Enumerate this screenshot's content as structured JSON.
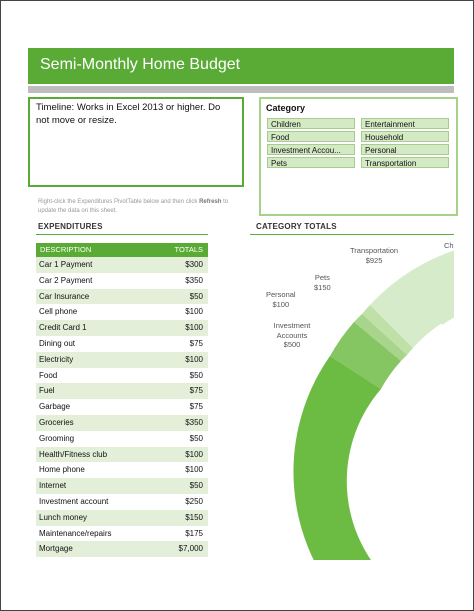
{
  "title": "Semi-Monthly Home Budget",
  "timeline_text": "Timeline: Works in Excel 2013 or higher. Do not move or resize.",
  "slicer": {
    "header": "Category",
    "items": [
      "Children",
      "Entertainment",
      "Food",
      "Household",
      "Investment Accou...",
      "Personal",
      "Pets",
      "Transportation"
    ]
  },
  "note": {
    "pre": "Right-click the Expenditures PivotTable below and then click ",
    "bold": "Refresh",
    "post": " to update the data on this sheet."
  },
  "expenditures": {
    "title": "EXPENDITURES",
    "col_desc": "DESCRIPTION",
    "col_total": "TOTALS",
    "rows": [
      {
        "desc": "Car 1 Payment",
        "total": "$300"
      },
      {
        "desc": "Car 2 Payment",
        "total": "$350"
      },
      {
        "desc": "Car Insurance",
        "total": "$50"
      },
      {
        "desc": "Cell phone",
        "total": "$100"
      },
      {
        "desc": "Credit Card 1",
        "total": "$100"
      },
      {
        "desc": "Dining out",
        "total": "$75"
      },
      {
        "desc": "Electricity",
        "total": "$100"
      },
      {
        "desc": "Food",
        "total": "$50"
      },
      {
        "desc": "Fuel",
        "total": "$75"
      },
      {
        "desc": "Garbage",
        "total": "$75"
      },
      {
        "desc": "Groceries",
        "total": "$350"
      },
      {
        "desc": "Grooming",
        "total": "$50"
      },
      {
        "desc": "Health/Fitness club",
        "total": "$100"
      },
      {
        "desc": "Home phone",
        "total": "$100"
      },
      {
        "desc": "Internet",
        "total": "$50"
      },
      {
        "desc": "Investment account",
        "total": "$250"
      },
      {
        "desc": "Lunch money",
        "total": "$150"
      },
      {
        "desc": "Maintenance/repairs",
        "total": "$175"
      },
      {
        "desc": "Mortgage",
        "total": "$7,000"
      }
    ]
  },
  "category_totals": {
    "title": "CATEGORY TOTALS",
    "labels": [
      {
        "name": "Transportation",
        "value": "$925"
      },
      {
        "name": "Ch",
        "value": ""
      },
      {
        "name": "Pets",
        "value": "$150"
      },
      {
        "name": "Personal",
        "value": "$100"
      },
      {
        "name": "Investment Accounts",
        "value": "$500"
      }
    ]
  },
  "colors": {
    "brand_green": "#5aab35",
    "gray_bar": "#bdbdbd",
    "row_alt": "#e3efd9"
  }
}
